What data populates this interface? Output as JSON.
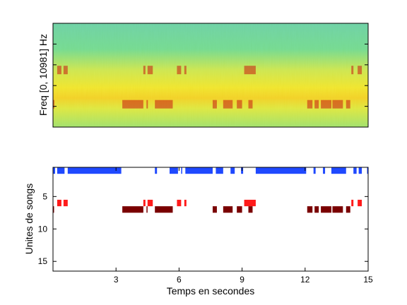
{
  "chart_data": [
    {
      "type": "heatmap",
      "title": "",
      "xlabel": "",
      "ylabel": "Freq [0, 10981] Hz",
      "xlim": [
        0,
        15
      ],
      "colormap": "jet",
      "notes": "spectrogram; mostly cyan/green background with yellow mid-band and red vocalisations"
    },
    {
      "type": "scatter",
      "title": "",
      "xlabel": "Temps en secondes",
      "ylabel": "Unites de songs",
      "xlim": [
        0,
        15
      ],
      "ylim": [
        16.5,
        0.5
      ],
      "y_reversed": true,
      "xticks": [
        3,
        6,
        9,
        12,
        15
      ],
      "yticks": [
        5,
        10,
        15
      ],
      "xtick_labels": [
        "3",
        "6",
        "9",
        "12",
        "15"
      ],
      "ytick_labels": [
        "5",
        "10",
        "15"
      ],
      "series": [
        {
          "unit": 1,
          "color": "#1f49ff",
          "segments": [
            [
              0.0,
              0.1
            ],
            [
              0.2,
              0.55
            ],
            [
              0.7,
              3.25
            ],
            [
              4.85,
              4.95
            ],
            [
              5.55,
              5.95
            ],
            [
              6.1,
              6.15
            ],
            [
              6.3,
              7.6
            ],
            [
              7.75,
              8.1
            ],
            [
              8.45,
              8.65
            ],
            [
              8.95,
              9.05
            ],
            [
              9.65,
              12.05
            ],
            [
              12.4,
              12.5
            ],
            [
              12.85,
              12.95
            ],
            [
              13.25,
              13.95
            ],
            [
              14.3,
              14.45
            ],
            [
              14.55,
              14.7
            ],
            [
              14.95,
              15.0
            ]
          ]
        },
        {
          "unit": 6,
          "color": "#ff1a1a",
          "segments": [
            [
              0.2,
              0.4
            ],
            [
              0.5,
              0.7
            ],
            [
              4.3,
              4.4
            ],
            [
              4.5,
              4.75
            ],
            [
              5.9,
              6.1
            ],
            [
              6.25,
              6.35
            ],
            [
              9.1,
              9.65
            ],
            [
              14.2,
              14.3
            ],
            [
              14.5,
              14.7
            ]
          ]
        },
        {
          "unit": 7,
          "color": "#7a0000",
          "segments": [
            [
              0.0,
              0.05
            ],
            [
              3.3,
              4.3
            ],
            [
              4.45,
              4.5
            ],
            [
              4.85,
              5.7
            ],
            [
              7.6,
              7.8
            ],
            [
              8.1,
              8.55
            ],
            [
              8.75,
              9.0
            ],
            [
              9.3,
              9.5
            ],
            [
              12.1,
              12.35
            ],
            [
              12.45,
              12.65
            ],
            [
              12.75,
              13.25
            ],
            [
              13.3,
              13.8
            ],
            [
              13.95,
              14.15
            ]
          ]
        }
      ]
    }
  ]
}
